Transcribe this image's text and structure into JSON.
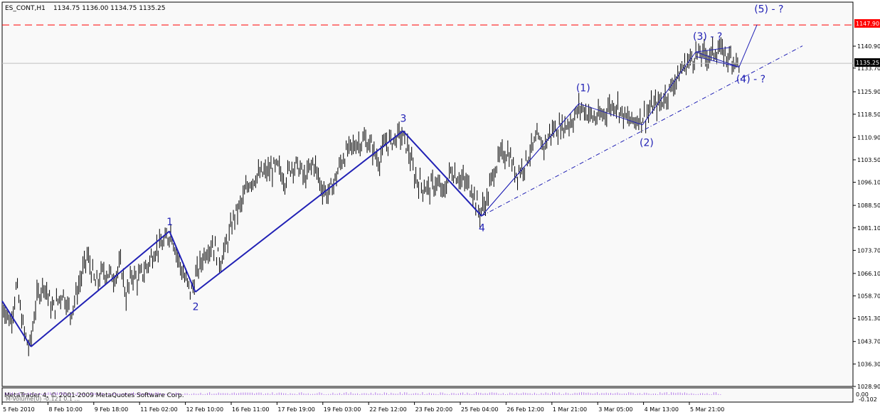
{
  "header": {
    "symbol": "ES_CONT,H1",
    "ohlc": "1134.75 1136.00 1134.75 1135.25"
  },
  "price_axis": {
    "ticks": [
      "1140.90",
      "1133.70",
      "1125.90",
      "1118.50",
      "1110.90",
      "1103.50",
      "1096.10",
      "1088.50",
      "1081.10",
      "1073.70",
      "1066.10",
      "1058.70",
      "1051.30",
      "1043.70",
      "1036.30",
      "1028.90"
    ],
    "tick_values": [
      1140.9,
      1133.7,
      1125.9,
      1118.5,
      1110.9,
      1103.5,
      1096.1,
      1088.5,
      1081.1,
      1073.7,
      1066.1,
      1058.7,
      1051.3,
      1043.7,
      1036.3,
      1028.9
    ],
    "level_label": "1147.90",
    "level_value": 1147.9,
    "current_label": "1135.25",
    "current_value": 1135.25,
    "ylim": [
      1028.9,
      1152.0
    ]
  },
  "time_axis": {
    "labels": [
      "5 Feb 2010",
      "8 Feb 10:00",
      "9 Feb 18:00",
      "11 Feb 02:00",
      "12 Feb 10:00",
      "16 Feb 11:00",
      "17 Feb 19:00",
      "19 Feb 03:00",
      "22 Feb 12:00",
      "23 Feb 20:00",
      "25 Feb 04:00",
      "26 Feb 12:00",
      "1 Mar 21:00",
      "3 Mar 05:00",
      "4 Mar 13:00",
      "5 Mar 21:00"
    ]
  },
  "subwindow": {
    "copyright": "MetaTrader 4, © 2001-2009 MetaQuotes Software Corp.",
    "overlay": "M-Volume(0) -0.121 0.1 ...",
    "scale_top": "0.00",
    "scale_bottom": "-0.102"
  },
  "colors": {
    "wave": "#2121b5",
    "level": "#ff0000",
    "level_tag": "#ff0000",
    "bars": "#000000",
    "background": "#f9f9f9"
  },
  "chart_data": {
    "type": "ohlc",
    "x_unit": "bar index (hourly bars)",
    "bars_count": 530,
    "price_path": [
      [
        0,
        1056
      ],
      [
        12,
        1050
      ],
      [
        20,
        1062
      ],
      [
        30,
        1047
      ],
      [
        38,
        1041
      ],
      [
        48,
        1058
      ],
      [
        58,
        1063
      ],
      [
        70,
        1054
      ],
      [
        84,
        1060
      ],
      [
        95,
        1053
      ],
      [
        110,
        1065
      ],
      [
        118,
        1072
      ],
      [
        130,
        1062
      ],
      [
        140,
        1067
      ],
      [
        155,
        1065
      ],
      [
        165,
        1069
      ],
      [
        172,
        1058
      ],
      [
        180,
        1066
      ],
      [
        188,
        1064
      ],
      [
        200,
        1068
      ],
      [
        212,
        1074
      ],
      [
        225,
        1076
      ],
      [
        234,
        1080
      ],
      [
        243,
        1072
      ],
      [
        252,
        1065
      ],
      [
        262,
        1060
      ],
      [
        270,
        1066
      ],
      [
        281,
        1073
      ],
      [
        292,
        1076
      ],
      [
        302,
        1070
      ],
      [
        312,
        1076
      ],
      [
        322,
        1085
      ],
      [
        332,
        1089
      ],
      [
        342,
        1096
      ],
      [
        352,
        1098
      ],
      [
        362,
        1099
      ],
      [
        372,
        1100
      ],
      [
        382,
        1101
      ],
      [
        392,
        1097
      ],
      [
        402,
        1102
      ],
      [
        412,
        1101
      ],
      [
        420,
        1097
      ],
      [
        432,
        1103
      ],
      [
        442,
        1095
      ],
      [
        452,
        1092
      ],
      [
        462,
        1097
      ],
      [
        472,
        1104
      ],
      [
        482,
        1107
      ],
      [
        492,
        1109
      ],
      [
        502,
        1110
      ],
      [
        512,
        1108
      ],
      [
        522,
        1103
      ],
      [
        532,
        1109
      ],
      [
        542,
        1110
      ],
      [
        552,
        1112
      ],
      [
        562,
        1108
      ],
      [
        572,
        1098
      ],
      [
        582,
        1095
      ],
      [
        592,
        1094
      ],
      [
        602,
        1096
      ],
      [
        612,
        1092
      ],
      [
        622,
        1100
      ],
      [
        632,
        1098
      ],
      [
        642,
        1096
      ],
      [
        652,
        1094
      ],
      [
        662,
        1086
      ],
      [
        672,
        1090
      ],
      [
        682,
        1100
      ],
      [
        692,
        1105
      ],
      [
        702,
        1106
      ],
      [
        712,
        1099
      ],
      [
        722,
        1101
      ],
      [
        732,
        1106
      ],
      [
        742,
        1110
      ],
      [
        752,
        1108
      ],
      [
        762,
        1113
      ],
      [
        772,
        1114
      ],
      [
        782,
        1115
      ],
      [
        792,
        1117
      ],
      [
        802,
        1121
      ],
      [
        812,
        1119
      ],
      [
        822,
        1117
      ],
      [
        832,
        1118
      ],
      [
        842,
        1121
      ],
      [
        852,
        1122
      ],
      [
        862,
        1118
      ],
      [
        872,
        1116
      ],
      [
        882,
        1117
      ],
      [
        892,
        1118
      ],
      [
        902,
        1121
      ],
      [
        912,
        1122
      ],
      [
        922,
        1125
      ],
      [
        932,
        1129
      ],
      [
        942,
        1133
      ],
      [
        952,
        1136
      ],
      [
        962,
        1138
      ],
      [
        972,
        1138
      ],
      [
        982,
        1138
      ],
      [
        992,
        1140
      ],
      [
        1002,
        1138
      ],
      [
        1012,
        1137
      ],
      [
        1022,
        1135.25
      ]
    ],
    "annotations": {
      "labels": [
        "1",
        "2",
        "3",
        "4",
        "(1)",
        "(2)",
        "(3) - ?",
        "(4) - ?",
        "(5) - ?"
      ],
      "label_prices": [
        1082,
        1054,
        1116,
        1080,
        1126,
        1108,
        1143,
        1129,
        1152
      ]
    },
    "wave_pattern": [
      [
        0,
        1057
      ],
      [
        40,
        1042
      ],
      [
        232,
        1080
      ],
      [
        268,
        1060
      ],
      [
        556,
        1113
      ],
      [
        665,
        1085
      ],
      [
        800,
        1122
      ],
      [
        888,
        1115
      ],
      [
        962,
        1139
      ],
      [
        1022,
        1134
      ],
      [
        1047,
        1148
      ]
    ],
    "trendlines": [
      {
        "name": "lower-channel",
        "style": "dash-dot",
        "points": [
          [
            665,
            1085
          ],
          [
            1110,
            1141
          ]
        ]
      },
      {
        "name": "level-1147.90",
        "style": "dashed",
        "price": 1147.9
      }
    ]
  }
}
